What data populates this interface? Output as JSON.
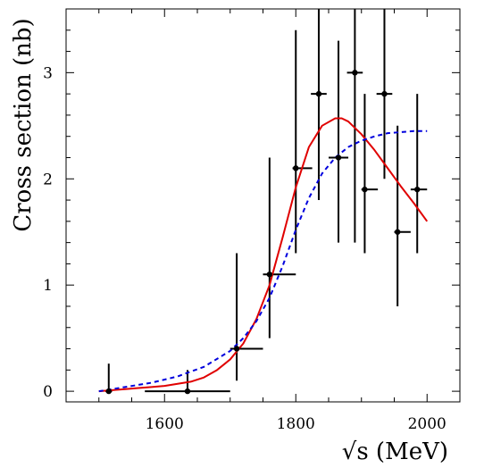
{
  "chart_data": {
    "type": "scatter",
    "title": "",
    "xlabel": "√s (MeV)",
    "ylabel": "Cross section (nb)",
    "xlim": [
      1450,
      2050
    ],
    "ylim": [
      -0.1,
      3.6
    ],
    "xticks": [
      1600,
      1800,
      2000
    ],
    "yticks": [
      0,
      1,
      2,
      3
    ],
    "grid": false,
    "legend": "none",
    "points": [
      {
        "x": 1515,
        "y": 0.0,
        "xerr": [
          5,
          5
        ],
        "yerr": [
          0.0,
          0.26
        ]
      },
      {
        "x": 1635,
        "y": 0.0,
        "xerr": [
          65,
          65
        ],
        "yerr": [
          0.0,
          0.2
        ]
      },
      {
        "x": 1710,
        "y": 0.4,
        "xerr": [
          10,
          40
        ],
        "yerr": [
          0.3,
          0.9
        ]
      },
      {
        "x": 1760,
        "y": 1.1,
        "xerr": [
          10,
          40
        ],
        "yerr": [
          0.6,
          1.1
        ]
      },
      {
        "x": 1800,
        "y": 2.1,
        "xerr": [
          5,
          25
        ],
        "yerr": [
          0.8,
          1.3
        ]
      },
      {
        "x": 1835,
        "y": 2.8,
        "xerr": [
          12,
          12
        ],
        "yerr": [
          1.0,
          1.0
        ]
      },
      {
        "x": 1865,
        "y": 2.2,
        "xerr": [
          15,
          15
        ],
        "yerr": [
          0.8,
          1.1
        ]
      },
      {
        "x": 1890,
        "y": 3.0,
        "xerr": [
          12,
          12
        ],
        "yerr": [
          1.6,
          1.0
        ]
      },
      {
        "x": 1905,
        "y": 1.9,
        "xerr": [
          5,
          20
        ],
        "yerr": [
          0.6,
          0.9
        ]
      },
      {
        "x": 1935,
        "y": 2.8,
        "xerr": [
          12,
          12
        ],
        "yerr": [
          0.8,
          1.0
        ]
      },
      {
        "x": 1955,
        "y": 1.5,
        "xerr": [
          5,
          20
        ],
        "yerr": [
          0.7,
          1.0
        ]
      },
      {
        "x": 1985,
        "y": 1.9,
        "xerr": [
          10,
          15
        ],
        "yerr": [
          0.6,
          0.9
        ]
      }
    ],
    "series": [
      {
        "style": "solid",
        "color": "#e00000",
        "x": [
          1500,
          1520,
          1540,
          1560,
          1580,
          1600,
          1620,
          1640,
          1660,
          1680,
          1700,
          1720,
          1740,
          1760,
          1780,
          1800,
          1820,
          1840,
          1860,
          1870,
          1880,
          1900,
          1920,
          1940,
          1960,
          1980,
          2000
        ],
        "y": [
          0.0,
          0.01,
          0.02,
          0.03,
          0.04,
          0.05,
          0.07,
          0.09,
          0.13,
          0.2,
          0.3,
          0.45,
          0.68,
          1.0,
          1.45,
          1.92,
          2.3,
          2.5,
          2.57,
          2.57,
          2.54,
          2.42,
          2.27,
          2.1,
          1.93,
          1.77,
          1.6
        ]
      },
      {
        "style": "dashed",
        "color": "#0000dd",
        "x": [
          1500,
          1540,
          1580,
          1620,
          1660,
          1700,
          1720,
          1740,
          1760,
          1780,
          1800,
          1820,
          1840,
          1860,
          1880,
          1900,
          1920,
          1940,
          1960,
          1980,
          2000
        ],
        "y": [
          0.0,
          0.04,
          0.08,
          0.14,
          0.23,
          0.38,
          0.5,
          0.66,
          0.88,
          1.18,
          1.52,
          1.82,
          2.05,
          2.2,
          2.3,
          2.36,
          2.4,
          2.43,
          2.44,
          2.45,
          2.45
        ]
      }
    ]
  }
}
